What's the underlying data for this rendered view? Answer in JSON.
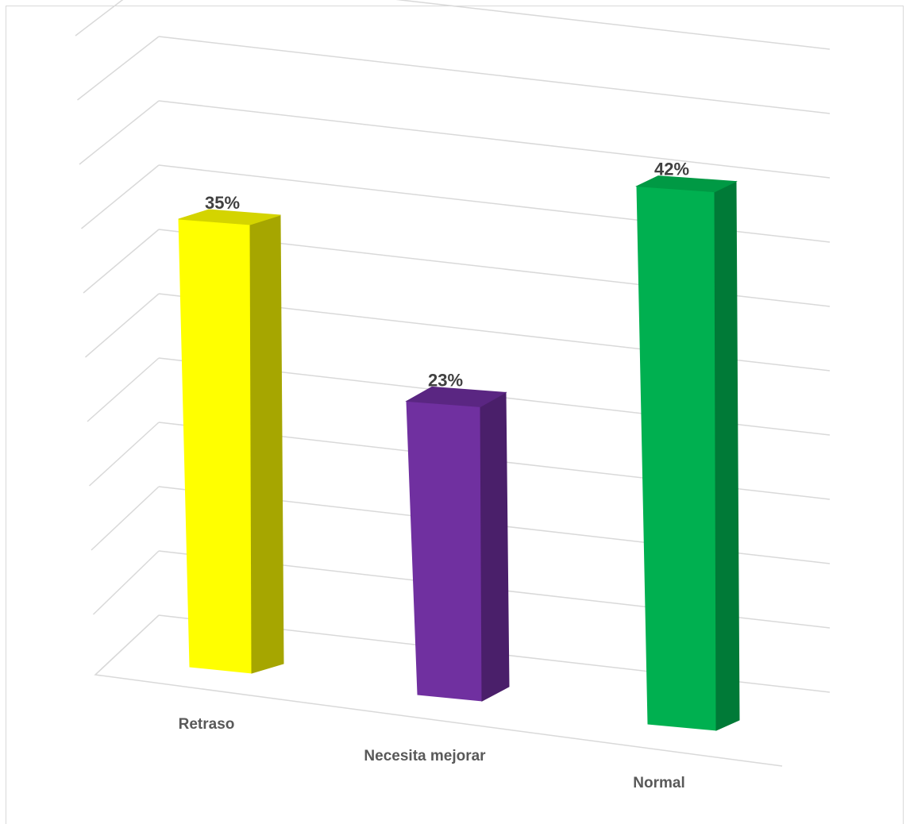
{
  "chart_data": {
    "type": "bar",
    "style": "3d-column",
    "title": "",
    "xlabel": "",
    "ylabel": "",
    "categories": [
      "Retraso",
      "Necesita mejorar",
      "Normal"
    ],
    "values": [
      35,
      23,
      42
    ],
    "value_labels": [
      "35%",
      "23%",
      "42%"
    ],
    "unit": "%",
    "ylim": [
      0,
      50
    ],
    "gridlines": true,
    "grid_steps": 10,
    "legend": "none",
    "colors": {
      "Retraso": {
        "front": "#ffff00",
        "side": "#a6a600",
        "top": "#d4d400"
      },
      "Necesita mejorar": {
        "front": "#7030a0",
        "side": "#4a1f6a",
        "top": "#5a2682"
      },
      "Normal": {
        "front": "#00b050",
        "side": "#007a37",
        "top": "#009944"
      }
    },
    "label_color": "#404040",
    "category_color": "#595959",
    "grid_color": "#d9d9d9"
  }
}
